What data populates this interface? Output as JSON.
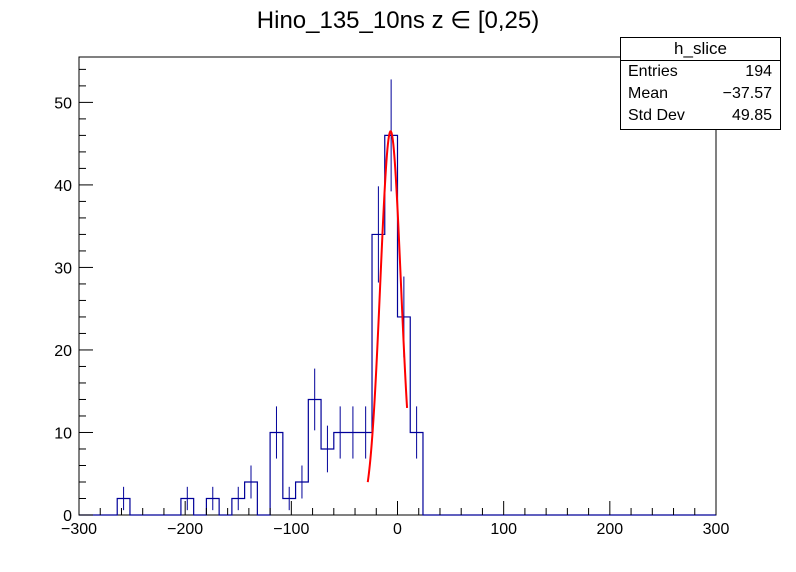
{
  "title": "Hino_135_10ns z  ∈ [0,25)",
  "stats": {
    "name": "h_slice",
    "rows": [
      {
        "label": "Entries",
        "value": "194"
      },
      {
        "label": "Mean",
        "value": "−37.57"
      },
      {
        "label": "Std Dev",
        "value": "49.85"
      }
    ]
  },
  "colors": {
    "histogram": "#000099",
    "fit": "#ff0000",
    "axis": "#000000"
  },
  "chart_data": {
    "type": "histogram",
    "xlim": [
      -300,
      300
    ],
    "ylim": [
      0,
      55.5
    ],
    "x_ticks": [
      -300,
      -200,
      -100,
      0,
      100,
      200,
      300
    ],
    "x_tick_labels": [
      "−300",
      "−200",
      "−100",
      "0",
      "100",
      "200",
      "300"
    ],
    "y_ticks": [
      0,
      10,
      20,
      30,
      40,
      50
    ],
    "y_tick_labels": [
      "0",
      "10",
      "20",
      "30",
      "40",
      "50"
    ],
    "bin_width": 12,
    "bins": [
      {
        "x_low": -264,
        "count": 2
      },
      {
        "x_low": -204,
        "count": 2
      },
      {
        "x_low": -180,
        "count": 2
      },
      {
        "x_low": -156,
        "count": 2
      },
      {
        "x_low": -144,
        "count": 4
      },
      {
        "x_low": -120,
        "count": 10
      },
      {
        "x_low": -108,
        "count": 2
      },
      {
        "x_low": -96,
        "count": 4
      },
      {
        "x_low": -84,
        "count": 14
      },
      {
        "x_low": -72,
        "count": 8
      },
      {
        "x_low": -60,
        "count": 10
      },
      {
        "x_low": -48,
        "count": 10
      },
      {
        "x_low": -36,
        "count": 10
      },
      {
        "x_low": -24,
        "count": 34
      },
      {
        "x_low": -12,
        "count": 46
      },
      {
        "x_low": 0,
        "count": 24
      },
      {
        "x_low": 12,
        "count": 10
      }
    ],
    "fit": {
      "function": "gaussian",
      "amplitude": 46.5,
      "mean": -6.5,
      "sigma": 9.7,
      "x_range": [
        -28,
        9
      ]
    },
    "grid": false
  }
}
